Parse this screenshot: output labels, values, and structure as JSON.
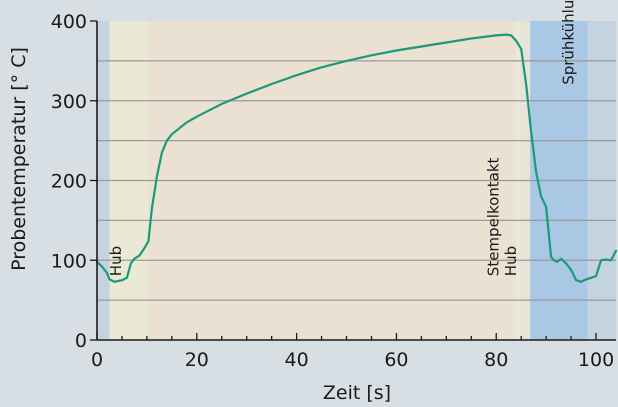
{
  "chart_data": {
    "type": "line",
    "title": "",
    "xlabel": "Zeit [s]",
    "ylabel": "Probentemperatur [° C]",
    "xlim": [
      0,
      104
    ],
    "ylim": [
      0,
      400
    ],
    "x_ticks": [
      0,
      20,
      40,
      60,
      80,
      100
    ],
    "y_ticks": [
      0,
      100,
      200,
      300,
      400
    ],
    "grid_lines_y": [
      50,
      100,
      150,
      200,
      250,
      300,
      350
    ],
    "grid": true,
    "legend": "none",
    "line_color": "#1a9a7a",
    "regions": [
      {
        "x_start": 0,
        "x_end": 2.5,
        "color": "#c5d3e0"
      },
      {
        "x_start": 2.5,
        "x_end": 10.3,
        "color": "#e9e9d6"
      },
      {
        "x_start": 10.3,
        "x_end": 83.8,
        "color": "#ebe1d3"
      },
      {
        "x_start": 83.8,
        "x_end": 84.8,
        "color": "#e9e9d6"
      },
      {
        "x_start": 84.8,
        "x_end": 86.8,
        "color": "#e6e3d8"
      },
      {
        "x_start": 86.8,
        "x_end": 98.3,
        "color": "#a8c8e4"
      },
      {
        "x_start": 98.3,
        "x_end": 104,
        "color": "#c5d3e0"
      }
    ],
    "annotations": [
      {
        "text": "Hub",
        "x": 4.8,
        "y": 80
      },
      {
        "text": "Stempelkontakt",
        "x": 80.5,
        "y": 80
      },
      {
        "text": "Hub",
        "x": 84.0,
        "y": 80
      },
      {
        "text": "Sprühkühlung",
        "x": 95.5,
        "y": 320
      }
    ],
    "series": [
      {
        "x": [
          0,
          1,
          2,
          2.5,
          3.5,
          5,
          6,
          6.8,
          7.5,
          8.5,
          9.5,
          10.3,
          11,
          12,
          13,
          14,
          15,
          16,
          18,
          20,
          25,
          30,
          35,
          40,
          45,
          50,
          55,
          60,
          65,
          70,
          75,
          80,
          82,
          83,
          84,
          85,
          86,
          87,
          88,
          89,
          90,
          91,
          91.6,
          92.2,
          93,
          94,
          95,
          96,
          97,
          98,
          99,
          100,
          101,
          102,
          103,
          104
        ],
        "y": [
          98,
          92,
          84,
          76,
          73,
          75,
          78,
          96,
          102,
          106,
          115,
          124,
          165,
          205,
          235,
          250,
          258,
          263,
          273,
          280,
          296,
          309,
          321,
          332,
          342,
          350,
          357,
          363,
          368,
          373,
          378,
          382,
          383,
          382,
          375,
          365,
          320,
          260,
          210,
          180,
          167,
          104,
          100,
          98,
          102,
          96,
          88,
          75,
          73,
          76,
          78,
          80,
          100,
          101,
          100,
          112
        ]
      }
    ]
  }
}
